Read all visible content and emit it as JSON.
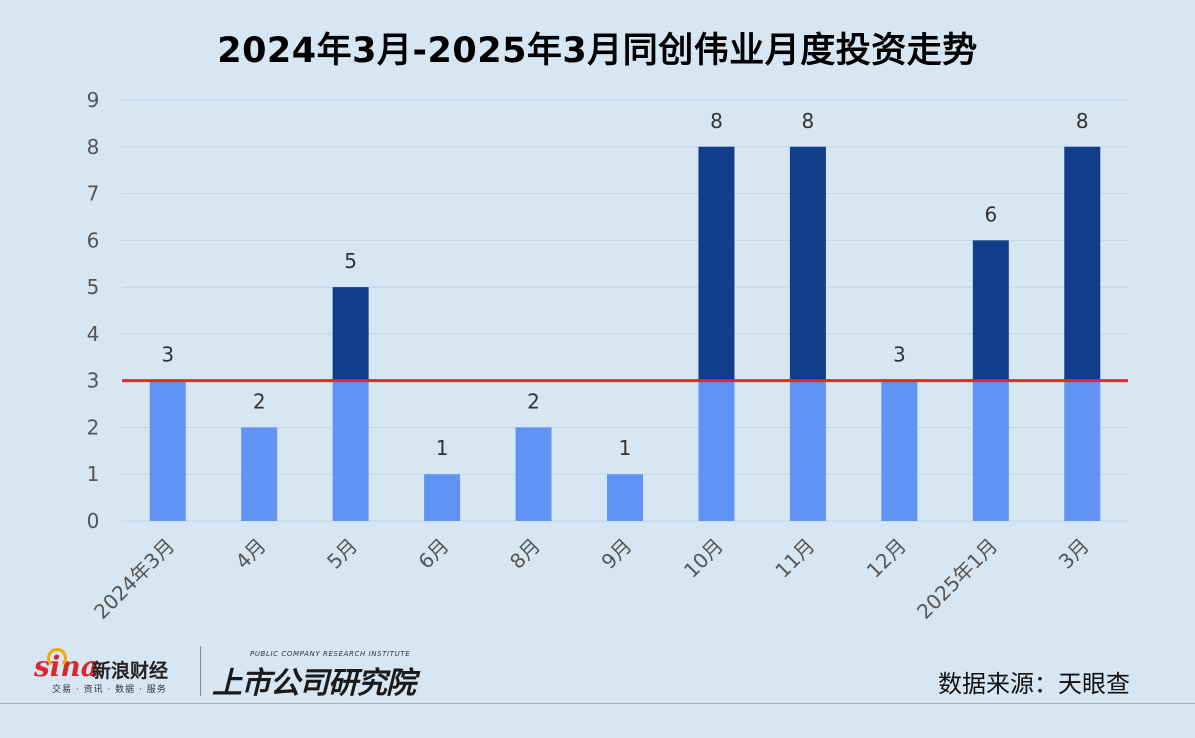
{
  "title": "2024年3月-2025年3月同创伟业月度投资走势",
  "chart_data": {
    "type": "bar",
    "stacked": true,
    "categories": [
      "2024年3月",
      "4月",
      "5月",
      "6月",
      "8月",
      "9月",
      "10月",
      "11月",
      "12月",
      "2025年1月",
      "3月"
    ],
    "totals": [
      3,
      2,
      5,
      1,
      2,
      1,
      8,
      8,
      3,
      6,
      8
    ],
    "series": [
      {
        "values": [
          3,
          2,
          3,
          1,
          2,
          1,
          3,
          3,
          3,
          3,
          3
        ],
        "color": "#6193f5"
      },
      {
        "values": [
          0,
          0,
          2,
          0,
          0,
          0,
          5,
          5,
          0,
          3,
          5
        ],
        "color": "#113e8b"
      }
    ],
    "reference_line": {
      "value": 3,
      "color": "#e8262a"
    },
    "ylim": [
      0,
      9
    ],
    "yticks": [
      0,
      1,
      2,
      3,
      4,
      5,
      6,
      7,
      8,
      9
    ],
    "grid": true,
    "data_labels": true,
    "legend": "none"
  },
  "footer": {
    "sina_word": "sina",
    "sina_name": "新浪财经",
    "sina_sub": "交易 · 资讯 · 数据 · 服务",
    "institute_en": "PUBLIC COMPANY RESEARCH INSTITUTE",
    "institute_cn": "上市公司研究院",
    "source": "数据来源：天眼查"
  }
}
